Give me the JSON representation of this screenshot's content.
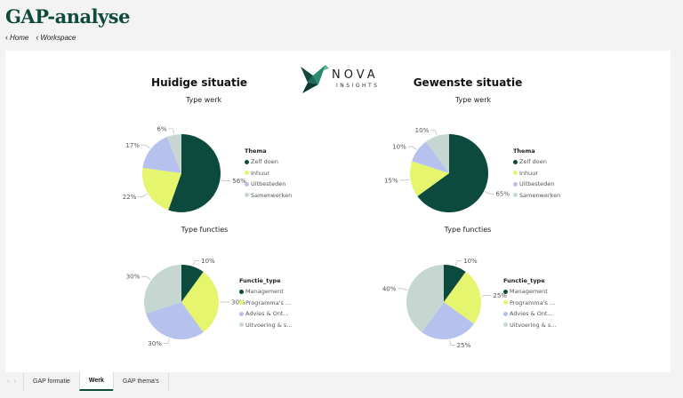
{
  "app": {
    "title": "GAP-analyse"
  },
  "nav": {
    "home": "Home",
    "workspace": "Workspace"
  },
  "logo": {
    "word": "NOVA",
    "sub": "INSIGHTS"
  },
  "left": {
    "heading": "Huidige situatie"
  },
  "right": {
    "heading": "Gewenste situatie"
  },
  "tabs": [
    {
      "label": "GAP formatie",
      "active": false
    },
    {
      "label": "Werk",
      "active": true
    },
    {
      "label": "GAP thema's",
      "active": false
    }
  ],
  "chart_data": [
    {
      "type": "pie",
      "title": "Type werk",
      "legend_title": "Thema",
      "categories": [
        "Zelf doen",
        "Inhuur",
        "Uitbesteden",
        "Samenwerken"
      ],
      "values": [
        56,
        22,
        17,
        6
      ],
      "colors": [
        "#0b4a3c",
        "#e5f56e",
        "#b7c1ee",
        "#c6d7d2"
      ],
      "data_labels": [
        "56%",
        "22%",
        "17%",
        "6%"
      ],
      "legend_placement": "right"
    },
    {
      "type": "pie",
      "title": "Type werk",
      "legend_title": "Thema",
      "categories": [
        "Zelf doen",
        "Inhuur",
        "Uitbesteden",
        "Samenwerken"
      ],
      "values": [
        65,
        15,
        10,
        10
      ],
      "colors": [
        "#0b4a3c",
        "#e5f56e",
        "#b7c1ee",
        "#c6d7d2"
      ],
      "data_labels": [
        "65%",
        "15%",
        "10%",
        "10%"
      ],
      "legend_placement": "right"
    },
    {
      "type": "pie",
      "title": "Type functies",
      "legend_title": "Functie_type",
      "categories": [
        "Management",
        "Programma's ...",
        "Advies & Ont...",
        "Uitvoering & s..."
      ],
      "values": [
        10,
        30,
        30,
        30
      ],
      "colors": [
        "#0b4a3c",
        "#e5f56e",
        "#b7c1ee",
        "#c6d7d2"
      ],
      "data_labels": [
        "10%",
        "30%",
        "30%",
        "30%"
      ],
      "legend_placement": "right"
    },
    {
      "type": "pie",
      "title": "Type functies",
      "legend_title": "Functie_type",
      "categories": [
        "Management",
        "Programma's ...",
        "Advies & Ont...",
        "Uitvoering & s..."
      ],
      "values": [
        10,
        25,
        25,
        40
      ],
      "colors": [
        "#0b4a3c",
        "#e5f56e",
        "#b7c1ee",
        "#c6d7d2"
      ],
      "data_labels": [
        "10%",
        "25%",
        "25%",
        "40%"
      ],
      "legend_placement": "right"
    }
  ]
}
